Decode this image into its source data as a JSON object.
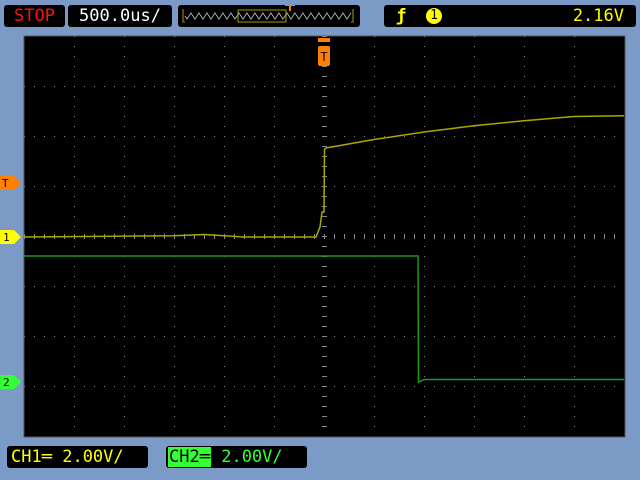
{
  "status": {
    "run_state": "STOP",
    "timebase": "500.0us/"
  },
  "trigger": {
    "slope_icon": "rising-edge-icon",
    "source": "1",
    "level": "2.16V",
    "level_volts": 2.16,
    "marker": "T"
  },
  "channels": [
    {
      "label": "CH1",
      "coupling_icon": "dc-coupling-icon",
      "scale": "2.00V/",
      "marker": "1",
      "color": "#c8c800"
    },
    {
      "label": "CH2",
      "coupling_icon": "dc-coupling-icon",
      "scale": "2.00V/",
      "marker": "2",
      "color": "#20b020"
    }
  ],
  "colors": {
    "background": "#7b9ac6",
    "grid": "#808080",
    "trigger": "#ff8000",
    "ch1_text": "#ffff00",
    "ch2_text": "#33ff33"
  },
  "traces": {
    "ch1": [
      [
        -3000,
        0
      ],
      [
        -1500,
        0.05
      ],
      [
        -1200,
        0.1
      ],
      [
        -800,
        0
      ],
      [
        -80,
        0
      ],
      [
        -40,
        0.4
      ],
      [
        -20,
        1
      ],
      [
        0,
        1
      ],
      [
        5,
        3.5
      ],
      [
        20,
        3.56
      ],
      [
        500,
        3.9
      ],
      [
        1000,
        4.2
      ],
      [
        1500,
        4.45
      ],
      [
        2000,
        4.65
      ],
      [
        2500,
        4.82
      ],
      [
        3000,
        4.85
      ]
    ],
    "ch2": [
      [
        -3000,
        5.04
      ],
      [
        940,
        5.04
      ],
      [
        945,
        0
      ],
      [
        1000,
        0.1
      ],
      [
        3000,
        0.1
      ]
    ]
  }
}
